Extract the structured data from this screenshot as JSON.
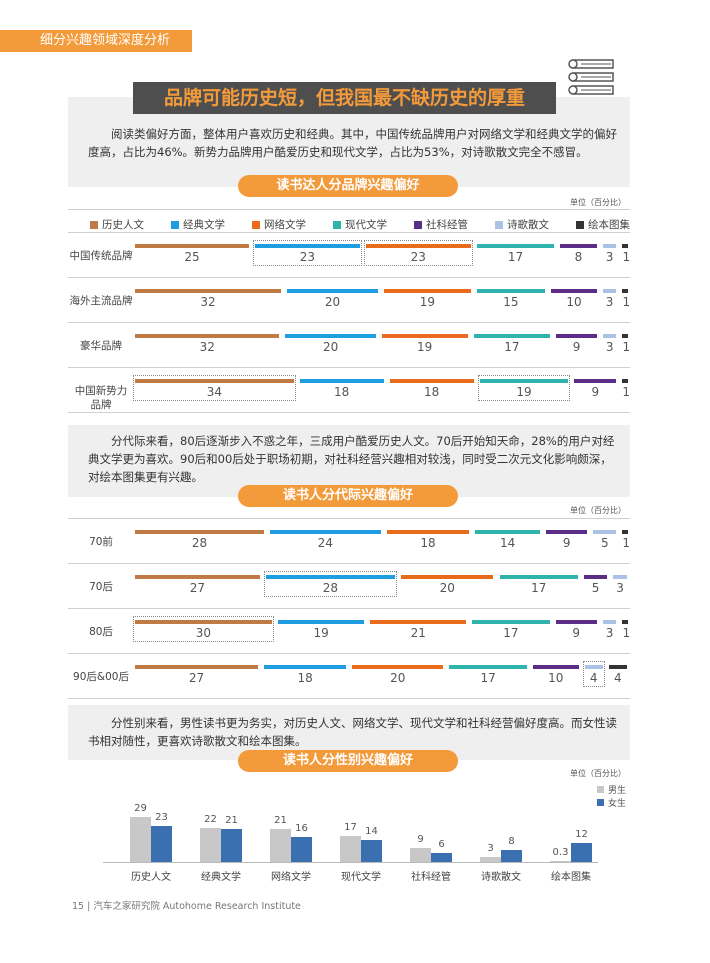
{
  "header": {
    "section": "细分兴趣领域深度分析"
  },
  "title": "品牌可能历史短，但我国最不缺历史的厚重",
  "para1": "阅读类偏好方面，整体用户喜欢历史和经典。其中，中国传统品牌用户对网络文学和经典文学的偏好度高，占比为46%。新势力品牌用户酷爱历史和现代文学，占比为53%，对诗歌散文完全不感冒。",
  "para2": "分代际来看，80后逐渐步入不惑之年，三成用户酷爱历史人文。70后开始知天命，28%的用户对经典文学更为喜欢。90后和00后处于职场初期，对社科经营兴趣相对较浅，同时受二次元文化影响颇深，对绘本图集更有兴趣。",
  "para3": "分性别来看，男性读书更为务实，对历史人文、网络文学、现代文学和社科经营偏好度高。而女性读书相对随性，更喜欢诗歌散文和绘本图集。",
  "unit": "单位（百分比）",
  "footer": "15 | 汽车之家研究院 Autohome Research Institute",
  "colors": [
    "#C07A45",
    "#1E9DE0",
    "#E86A1B",
    "#2FB4AD",
    "#5B2D86",
    "#A9C2E6",
    "#333333"
  ],
  "chart_data": [
    {
      "type": "bar",
      "title": "读书达人分品牌兴趣偏好",
      "categories": [
        "历史人文",
        "经典文学",
        "网络文学",
        "现代文学",
        "社科经管",
        "诗歌散文",
        "绘本图集"
      ],
      "rows": [
        {
          "label": "中国传统品牌",
          "values": [
            25,
            23,
            23,
            17,
            8,
            3,
            1
          ],
          "highlight": [
            1,
            2
          ]
        },
        {
          "label": "海外主流品牌",
          "values": [
            32,
            20,
            19,
            15,
            10,
            3,
            1
          ],
          "highlight": []
        },
        {
          "label": "豪华品牌",
          "values": [
            32,
            20,
            19,
            17,
            9,
            3,
            1
          ],
          "highlight": []
        },
        {
          "label": "中国新势力\n品牌",
          "values": [
            34,
            18,
            18,
            19,
            9,
            1
          ],
          "highlight": [
            0,
            3
          ],
          "skip_index": 5
        }
      ]
    },
    {
      "type": "bar",
      "title": "读书人分代际兴趣偏好",
      "categories": [
        "历史人文",
        "经典文学",
        "网络文学",
        "现代文学",
        "社科经管",
        "诗歌散文",
        "绘本图集"
      ],
      "rows": [
        {
          "label": "70前",
          "values": [
            28,
            24,
            18,
            14,
            9,
            5,
            1
          ],
          "highlight": []
        },
        {
          "label": "70后",
          "values": [
            27,
            28,
            20,
            17,
            5,
            3
          ],
          "highlight": [
            1
          ],
          "skip_index": 6
        },
        {
          "label": "80后",
          "values": [
            30,
            19,
            21,
            17,
            9,
            3,
            1
          ],
          "highlight": [
            0
          ]
        },
        {
          "label": "90后&00后",
          "values": [
            27,
            18,
            20,
            17,
            10,
            4,
            4
          ],
          "highlight": [
            5
          ]
        }
      ]
    },
    {
      "type": "bar",
      "title": "读书人分性别兴趣偏好",
      "categories": [
        "历史人文",
        "经典文学",
        "网络文学",
        "现代文学",
        "社科经管",
        "诗歌散文",
        "绘本图集"
      ],
      "series": [
        {
          "name": "男生",
          "color": "#C8C8C8",
          "values": [
            29,
            22,
            21,
            17,
            9,
            3,
            0.3
          ]
        },
        {
          "name": "女生",
          "color": "#3A6FB0",
          "values": [
            23,
            21,
            16,
            14,
            6,
            8,
            12
          ]
        }
      ]
    }
  ]
}
